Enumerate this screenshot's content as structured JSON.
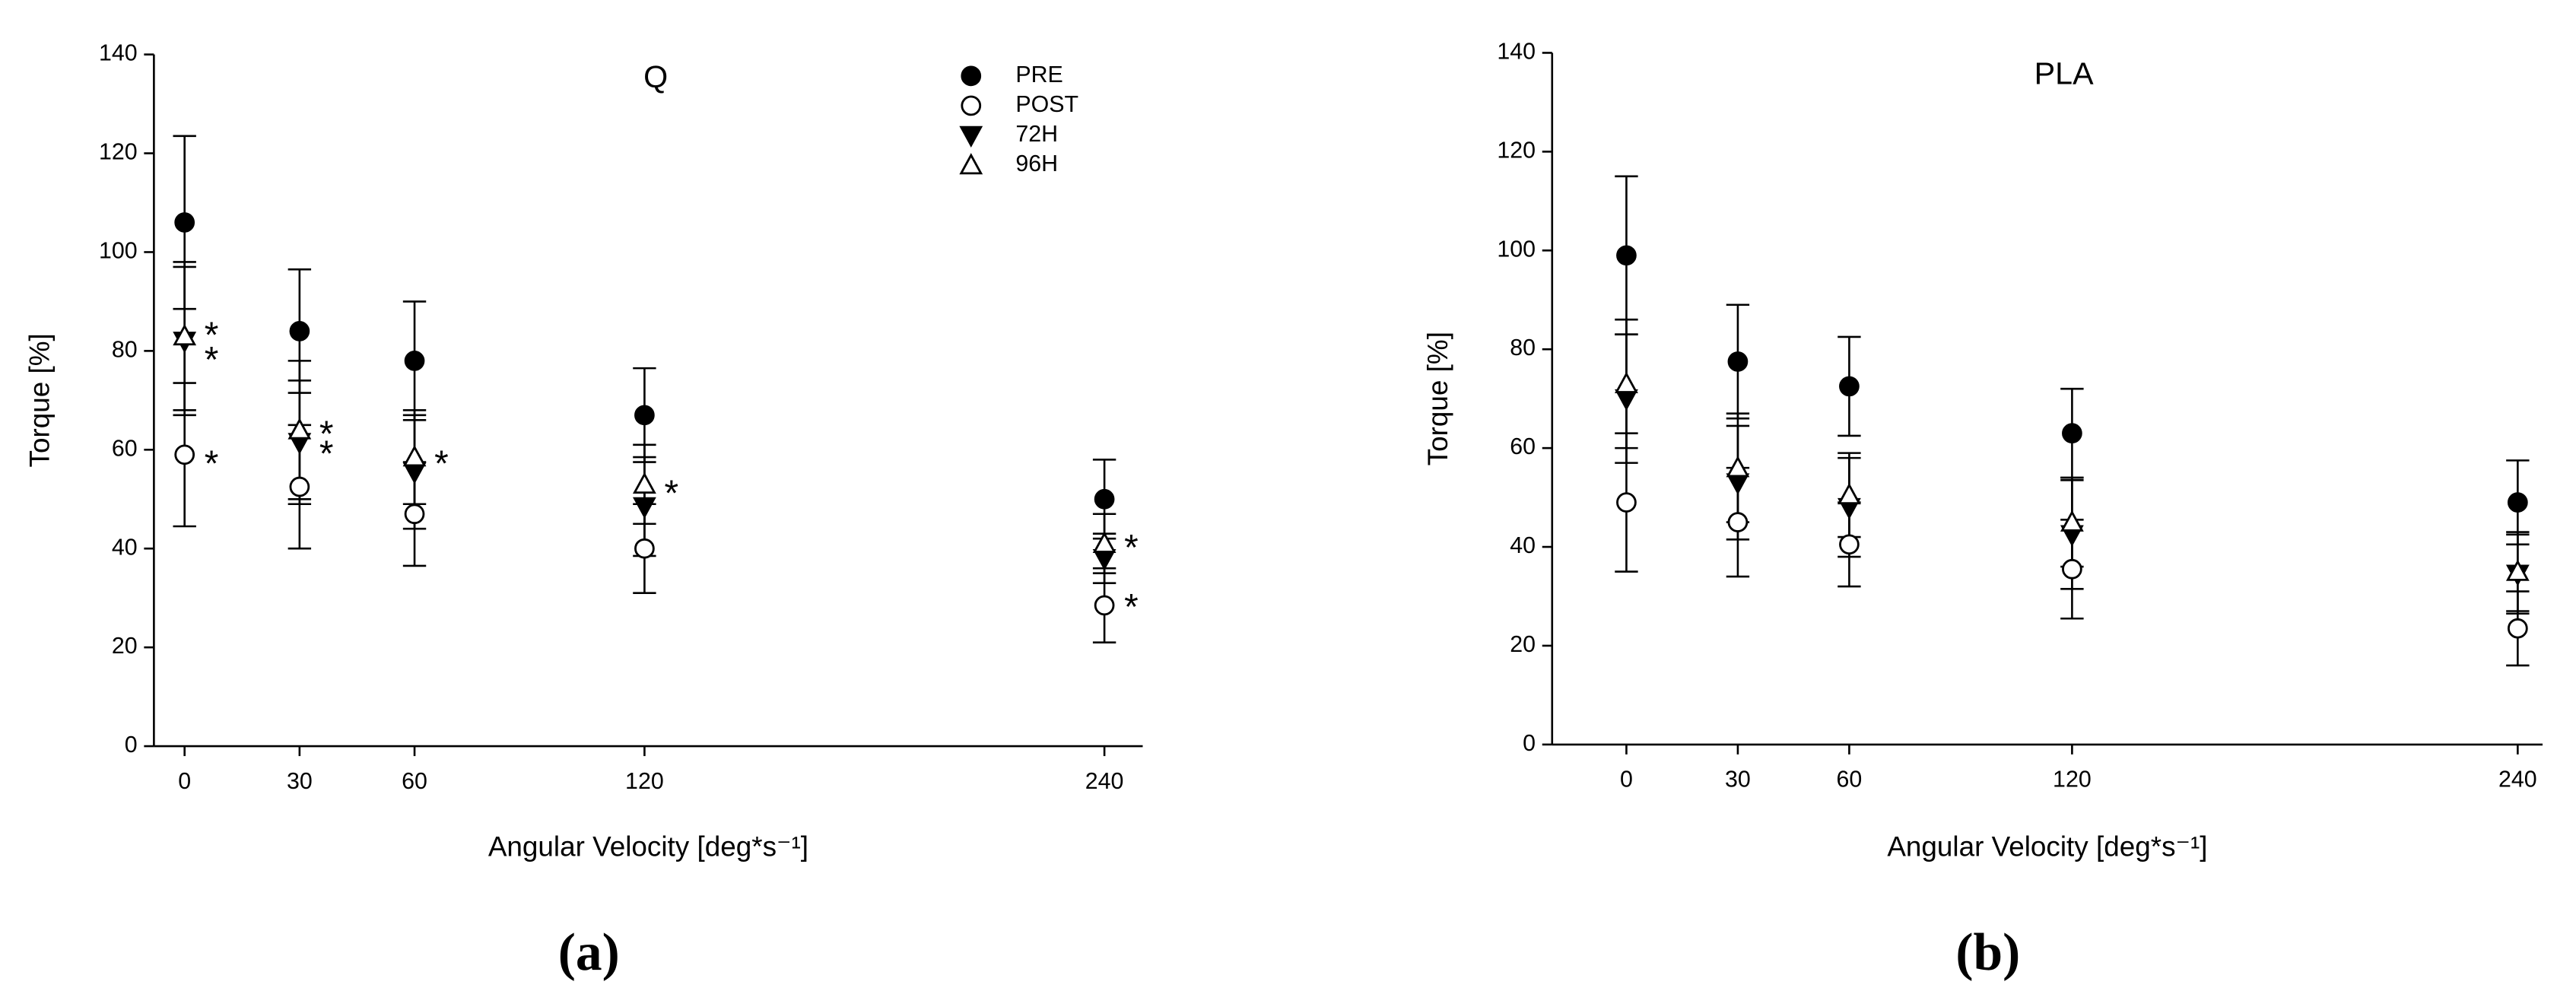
{
  "chart_data": [
    {
      "type": "scatter",
      "title": "Q",
      "x_label": "Angular Velocity [deg*s⁻¹]",
      "y_label": "Torque [%]",
      "panel_label": "(a)",
      "x": [
        0,
        30,
        60,
        120,
        240
      ],
      "xlim": [
        -8,
        250
      ],
      "xticks": [
        0,
        30,
        60,
        120,
        240
      ],
      "ylim": [
        0,
        140
      ],
      "yticks": [
        0,
        20,
        40,
        60,
        80,
        100,
        120,
        140
      ],
      "legend": "top-right",
      "series": [
        {
          "name": "PRE",
          "color": "#000000",
          "marker": "circle-filled",
          "values": [
            106,
            84,
            78,
            67,
            50
          ],
          "errors": [
            17.5,
            12.5,
            12,
            9.5,
            8
          ]
        },
        {
          "name": "POST",
          "color": "#000000",
          "marker": "circle-open",
          "values": [
            59,
            52.5,
            47,
            40,
            28.5
          ],
          "errors": [
            14.5,
            12.5,
            10.5,
            9,
            7.5
          ]
        },
        {
          "name": "72H",
          "color": "#000000",
          "marker": "triangle-down-filled",
          "values": [
            82,
            61.5,
            55.5,
            48.5,
            38
          ],
          "errors": [
            15,
            12.5,
            11.5,
            10,
            5
          ]
        },
        {
          "name": "96H",
          "color": "#000000",
          "marker": "triangle-up-open",
          "values": [
            83,
            64,
            58.5,
            53,
            41
          ],
          "errors": [
            15,
            14,
            9.5,
            8,
            6
          ]
        }
      ],
      "annotations": [
        {
          "text": "*",
          "x": 0,
          "y": 84
        },
        {
          "text": "*",
          "x": 0,
          "y": 79
        },
        {
          "text": "*",
          "x": 0,
          "y": 58
        },
        {
          "text": "*",
          "x": 30,
          "y": 64
        },
        {
          "text": "*",
          "x": 30,
          "y": 60
        },
        {
          "text": "*",
          "x": 60,
          "y": 58
        },
        {
          "text": "*",
          "x": 120,
          "y": 52
        },
        {
          "text": "*",
          "x": 240,
          "y": 41
        },
        {
          "text": "*",
          "x": 240,
          "y": 29
        }
      ]
    },
    {
      "type": "scatter",
      "title": "PLA",
      "x_label": "Angular Velocity [deg*s⁻¹]",
      "y_label": "Torque [%]",
      "panel_label": "(b)",
      "x": [
        0,
        30,
        60,
        120,
        240
      ],
      "xlim": [
        -20,
        246.7
      ],
      "xticks": [
        0,
        30,
        60,
        120,
        240
      ],
      "ylim": [
        0,
        140
      ],
      "yticks": [
        0,
        20,
        40,
        60,
        80,
        100,
        120,
        140
      ],
      "series": [
        {
          "name": "PRE",
          "color": "#000000",
          "marker": "circle-filled",
          "values": [
            99,
            77.5,
            72.5,
            63,
            49
          ],
          "errors": [
            16,
            11.5,
            10,
            9,
            8.5
          ]
        },
        {
          "name": "POST",
          "color": "#000000",
          "marker": "circle-open",
          "values": [
            49,
            45,
            40.5,
            35.5,
            23.5
          ],
          "errors": [
            14,
            11,
            8.5,
            10,
            7.5
          ]
        },
        {
          "name": "72H",
          "color": "#000000",
          "marker": "triangle-down-filled",
          "values": [
            70,
            53,
            48,
            42.5,
            34.5
          ],
          "errors": [
            13,
            11.5,
            10,
            11,
            8
          ]
        },
        {
          "name": "96H",
          "color": "#000000",
          "marker": "triangle-up-open",
          "values": [
            73,
            56,
            50.5,
            45,
            35
          ],
          "errors": [
            13,
            11,
            8.5,
            9,
            8
          ]
        }
      ]
    }
  ]
}
